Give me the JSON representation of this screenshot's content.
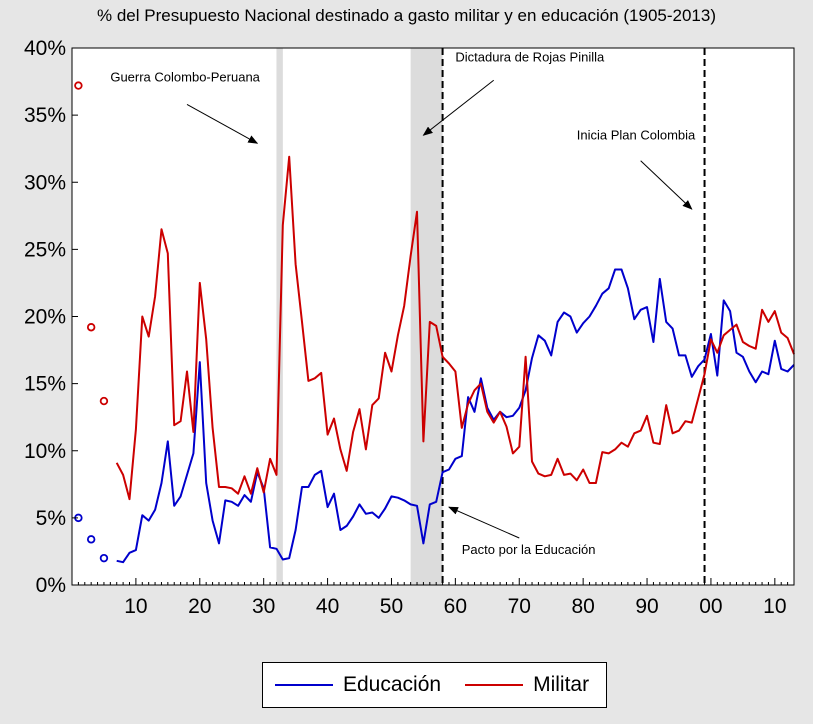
{
  "chart_data": {
    "type": "line",
    "title": "% del Presupuesto Nacional destinado a gasto militar y en educación (1905-2013)",
    "x_tick_labels": [
      "10",
      "20",
      "30",
      "40",
      "50",
      "60",
      "70",
      "80",
      "90",
      "00",
      "10"
    ],
    "x_tick_years": [
      1910,
      1920,
      1930,
      1940,
      1950,
      1960,
      1970,
      1980,
      1990,
      2000,
      2010
    ],
    "xlim": [
      1900,
      2013
    ],
    "y_tick_labels": [
      "0%",
      "5%",
      "10%",
      "15%",
      "20%",
      "25%",
      "30%",
      "35%",
      "40%"
    ],
    "y_tick_values": [
      0,
      5,
      10,
      15,
      20,
      25,
      30,
      35,
      40
    ],
    "ylim": [
      0,
      40
    ],
    "grid": false,
    "legend_position": "bottom-center",
    "shaded_periods": [
      {
        "from": 1932,
        "to": 1933,
        "color": "#dcdcdc"
      },
      {
        "from": 1953,
        "to": 1958,
        "color": "#dcdcdc"
      }
    ],
    "vertical_lines": [
      1958,
      1999
    ],
    "annotations": [
      {
        "text": "Guerra Colombo-Peruana",
        "x": 1906,
        "y": 37.5,
        "arrow_to": [
          1929,
          32.9
        ],
        "arrow_from": [
          1918,
          35.8
        ]
      },
      {
        "text": "Dictadura de Rojas Pinilla",
        "x": 1960,
        "y": 39.0,
        "arrow_to": [
          1955,
          33.5
        ],
        "arrow_from": [
          1966,
          37.6
        ]
      },
      {
        "text": "Inicia Plan Colombia",
        "x": 1979,
        "y": 33.2,
        "arrow_to": [
          1997,
          28.0
        ],
        "arrow_from": [
          1989,
          31.6
        ]
      },
      {
        "text": "Pacto por la Educación",
        "x": 1961,
        "y": 2.3,
        "arrow_to": [
          1959,
          5.8
        ],
        "arrow_from": [
          1970,
          3.5
        ]
      }
    ],
    "series": [
      {
        "name": "Educación",
        "color": "#0000cc",
        "isolated_points": [
          [
            1901,
            5.0
          ],
          [
            1903,
            3.4
          ],
          [
            1905,
            2.0
          ]
        ],
        "points": [
          [
            1907,
            1.8
          ],
          [
            1908,
            1.7
          ],
          [
            1909,
            2.4
          ],
          [
            1910,
            2.6
          ],
          [
            1911,
            5.2
          ],
          [
            1912,
            4.8
          ],
          [
            1913,
            5.6
          ],
          [
            1914,
            7.6
          ],
          [
            1915,
            10.7
          ],
          [
            1916,
            5.9
          ],
          [
            1917,
            6.6
          ],
          [
            1918,
            8.2
          ],
          [
            1919,
            9.8
          ],
          [
            1920,
            16.6
          ],
          [
            1921,
            7.6
          ],
          [
            1922,
            4.8
          ],
          [
            1923,
            3.1
          ],
          [
            1924,
            6.3
          ],
          [
            1925,
            6.2
          ],
          [
            1926,
            5.9
          ],
          [
            1927,
            6.7
          ],
          [
            1928,
            6.2
          ],
          [
            1929,
            8.4
          ],
          [
            1930,
            7.2
          ],
          [
            1931,
            2.8
          ],
          [
            1932,
            2.7
          ],
          [
            1933,
            1.9
          ],
          [
            1934,
            2.0
          ],
          [
            1935,
            4.1
          ],
          [
            1936,
            7.3
          ],
          [
            1937,
            7.3
          ],
          [
            1938,
            8.2
          ],
          [
            1939,
            8.5
          ],
          [
            1940,
            5.8
          ],
          [
            1941,
            6.8
          ],
          [
            1942,
            4.1
          ],
          [
            1943,
            4.4
          ],
          [
            1944,
            5.1
          ],
          [
            1945,
            6.0
          ],
          [
            1946,
            5.3
          ],
          [
            1947,
            5.4
          ],
          [
            1948,
            5.0
          ],
          [
            1949,
            5.7
          ],
          [
            1950,
            6.6
          ],
          [
            1951,
            6.5
          ],
          [
            1952,
            6.3
          ],
          [
            1953,
            6.0
          ],
          [
            1954,
            5.9
          ],
          [
            1955,
            3.1
          ],
          [
            1956,
            6.0
          ],
          [
            1957,
            6.2
          ],
          [
            1958,
            8.4
          ],
          [
            1959,
            8.6
          ],
          [
            1960,
            9.4
          ],
          [
            1961,
            9.6
          ],
          [
            1962,
            14.0
          ],
          [
            1963,
            12.9
          ],
          [
            1964,
            15.4
          ],
          [
            1965,
            13.2
          ],
          [
            1966,
            12.3
          ],
          [
            1967,
            12.9
          ],
          [
            1968,
            12.5
          ],
          [
            1969,
            12.6
          ],
          [
            1970,
            13.2
          ],
          [
            1971,
            14.5
          ],
          [
            1972,
            16.9
          ],
          [
            1973,
            18.6
          ],
          [
            1974,
            18.2
          ],
          [
            1975,
            17.1
          ],
          [
            1976,
            19.6
          ],
          [
            1977,
            20.3
          ],
          [
            1978,
            20.0
          ],
          [
            1979,
            18.8
          ],
          [
            1980,
            19.5
          ],
          [
            1981,
            20.0
          ],
          [
            1982,
            20.8
          ],
          [
            1983,
            21.7
          ],
          [
            1984,
            22.1
          ],
          [
            1985,
            23.5
          ],
          [
            1986,
            23.5
          ],
          [
            1987,
            22.1
          ],
          [
            1988,
            19.8
          ],
          [
            1989,
            20.5
          ],
          [
            1990,
            20.7
          ],
          [
            1991,
            18.1
          ],
          [
            1992,
            22.8
          ],
          [
            1993,
            19.6
          ],
          [
            1994,
            19.1
          ],
          [
            1995,
            17.1
          ],
          [
            1996,
            17.1
          ],
          [
            1997,
            15.5
          ],
          [
            1998,
            16.3
          ],
          [
            1999,
            16.8
          ],
          [
            2000,
            18.7
          ],
          [
            2001,
            15.6
          ],
          [
            2002,
            21.2
          ],
          [
            2003,
            20.4
          ],
          [
            2004,
            17.3
          ],
          [
            2005,
            17.0
          ],
          [
            2006,
            15.9
          ],
          [
            2007,
            15.1
          ],
          [
            2008,
            15.9
          ],
          [
            2009,
            15.7
          ],
          [
            2010,
            18.2
          ],
          [
            2011,
            16.1
          ],
          [
            2012,
            15.9
          ],
          [
            2013,
            16.4
          ]
        ]
      },
      {
        "name": "Militar",
        "color": "#cc0000",
        "isolated_points": [
          [
            1901,
            37.2
          ],
          [
            1903,
            19.2
          ],
          [
            1905,
            13.7
          ]
        ],
        "points": [
          [
            1907,
            9.1
          ],
          [
            1908,
            8.2
          ],
          [
            1909,
            6.4
          ],
          [
            1910,
            11.6
          ],
          [
            1911,
            20.0
          ],
          [
            1912,
            18.5
          ],
          [
            1913,
            21.5
          ],
          [
            1914,
            26.5
          ],
          [
            1915,
            24.7
          ],
          [
            1916,
            11.9
          ],
          [
            1917,
            12.2
          ],
          [
            1918,
            15.9
          ],
          [
            1919,
            11.4
          ],
          [
            1920,
            22.5
          ],
          [
            1921,
            18.3
          ],
          [
            1922,
            11.7
          ],
          [
            1923,
            7.3
          ],
          [
            1924,
            7.3
          ],
          [
            1925,
            7.2
          ],
          [
            1926,
            6.8
          ],
          [
            1927,
            8.1
          ],
          [
            1928,
            6.8
          ],
          [
            1929,
            8.7
          ],
          [
            1930,
            6.9
          ],
          [
            1931,
            9.4
          ],
          [
            1932,
            8.2
          ],
          [
            1933,
            26.8
          ],
          [
            1934,
            31.9
          ],
          [
            1935,
            23.9
          ],
          [
            1936,
            19.6
          ],
          [
            1937,
            15.2
          ],
          [
            1938,
            15.4
          ],
          [
            1939,
            15.8
          ],
          [
            1940,
            11.2
          ],
          [
            1941,
            12.4
          ],
          [
            1942,
            10.1
          ],
          [
            1943,
            8.5
          ],
          [
            1944,
            11.4
          ],
          [
            1945,
            13.1
          ],
          [
            1946,
            10.1
          ],
          [
            1947,
            13.4
          ],
          [
            1948,
            13.9
          ],
          [
            1949,
            17.3
          ],
          [
            1950,
            15.9
          ],
          [
            1951,
            18.6
          ],
          [
            1952,
            20.8
          ],
          [
            1953,
            24.5
          ],
          [
            1954,
            27.8
          ],
          [
            1955,
            10.7
          ],
          [
            1956,
            19.6
          ],
          [
            1957,
            19.3
          ],
          [
            1958,
            17.0
          ],
          [
            1959,
            16.5
          ],
          [
            1960,
            15.9
          ],
          [
            1961,
            11.7
          ],
          [
            1962,
            13.5
          ],
          [
            1963,
            14.5
          ],
          [
            1964,
            15.0
          ],
          [
            1965,
            12.9
          ],
          [
            1966,
            12.1
          ],
          [
            1967,
            12.9
          ],
          [
            1968,
            11.8
          ],
          [
            1969,
            9.8
          ],
          [
            1970,
            10.3
          ],
          [
            1971,
            17.0
          ],
          [
            1972,
            9.2
          ],
          [
            1973,
            8.3
          ],
          [
            1974,
            8.1
          ],
          [
            1975,
            8.2
          ],
          [
            1976,
            9.4
          ],
          [
            1977,
            8.2
          ],
          [
            1978,
            8.3
          ],
          [
            1979,
            7.8
          ],
          [
            1980,
            8.6
          ],
          [
            1981,
            7.6
          ],
          [
            1982,
            7.6
          ],
          [
            1983,
            9.9
          ],
          [
            1984,
            9.8
          ],
          [
            1985,
            10.1
          ],
          [
            1986,
            10.6
          ],
          [
            1987,
            10.3
          ],
          [
            1988,
            11.3
          ],
          [
            1989,
            11.5
          ],
          [
            1990,
            12.6
          ],
          [
            1991,
            10.6
          ],
          [
            1992,
            10.5
          ],
          [
            1993,
            13.4
          ],
          [
            1994,
            11.3
          ],
          [
            1995,
            11.5
          ],
          [
            1996,
            12.2
          ],
          [
            1997,
            12.1
          ],
          [
            1998,
            13.9
          ],
          [
            1999,
            15.7
          ],
          [
            2000,
            18.3
          ],
          [
            2001,
            17.3
          ],
          [
            2002,
            18.6
          ],
          [
            2003,
            19.0
          ],
          [
            2004,
            19.4
          ],
          [
            2005,
            18.1
          ],
          [
            2006,
            17.8
          ],
          [
            2007,
            17.6
          ],
          [
            2008,
            20.5
          ],
          [
            2009,
            19.6
          ],
          [
            2010,
            20.4
          ],
          [
            2011,
            18.8
          ],
          [
            2012,
            18.4
          ],
          [
            2013,
            17.2
          ]
        ]
      }
    ]
  },
  "legend": {
    "items": [
      "Educación",
      "Militar"
    ]
  }
}
